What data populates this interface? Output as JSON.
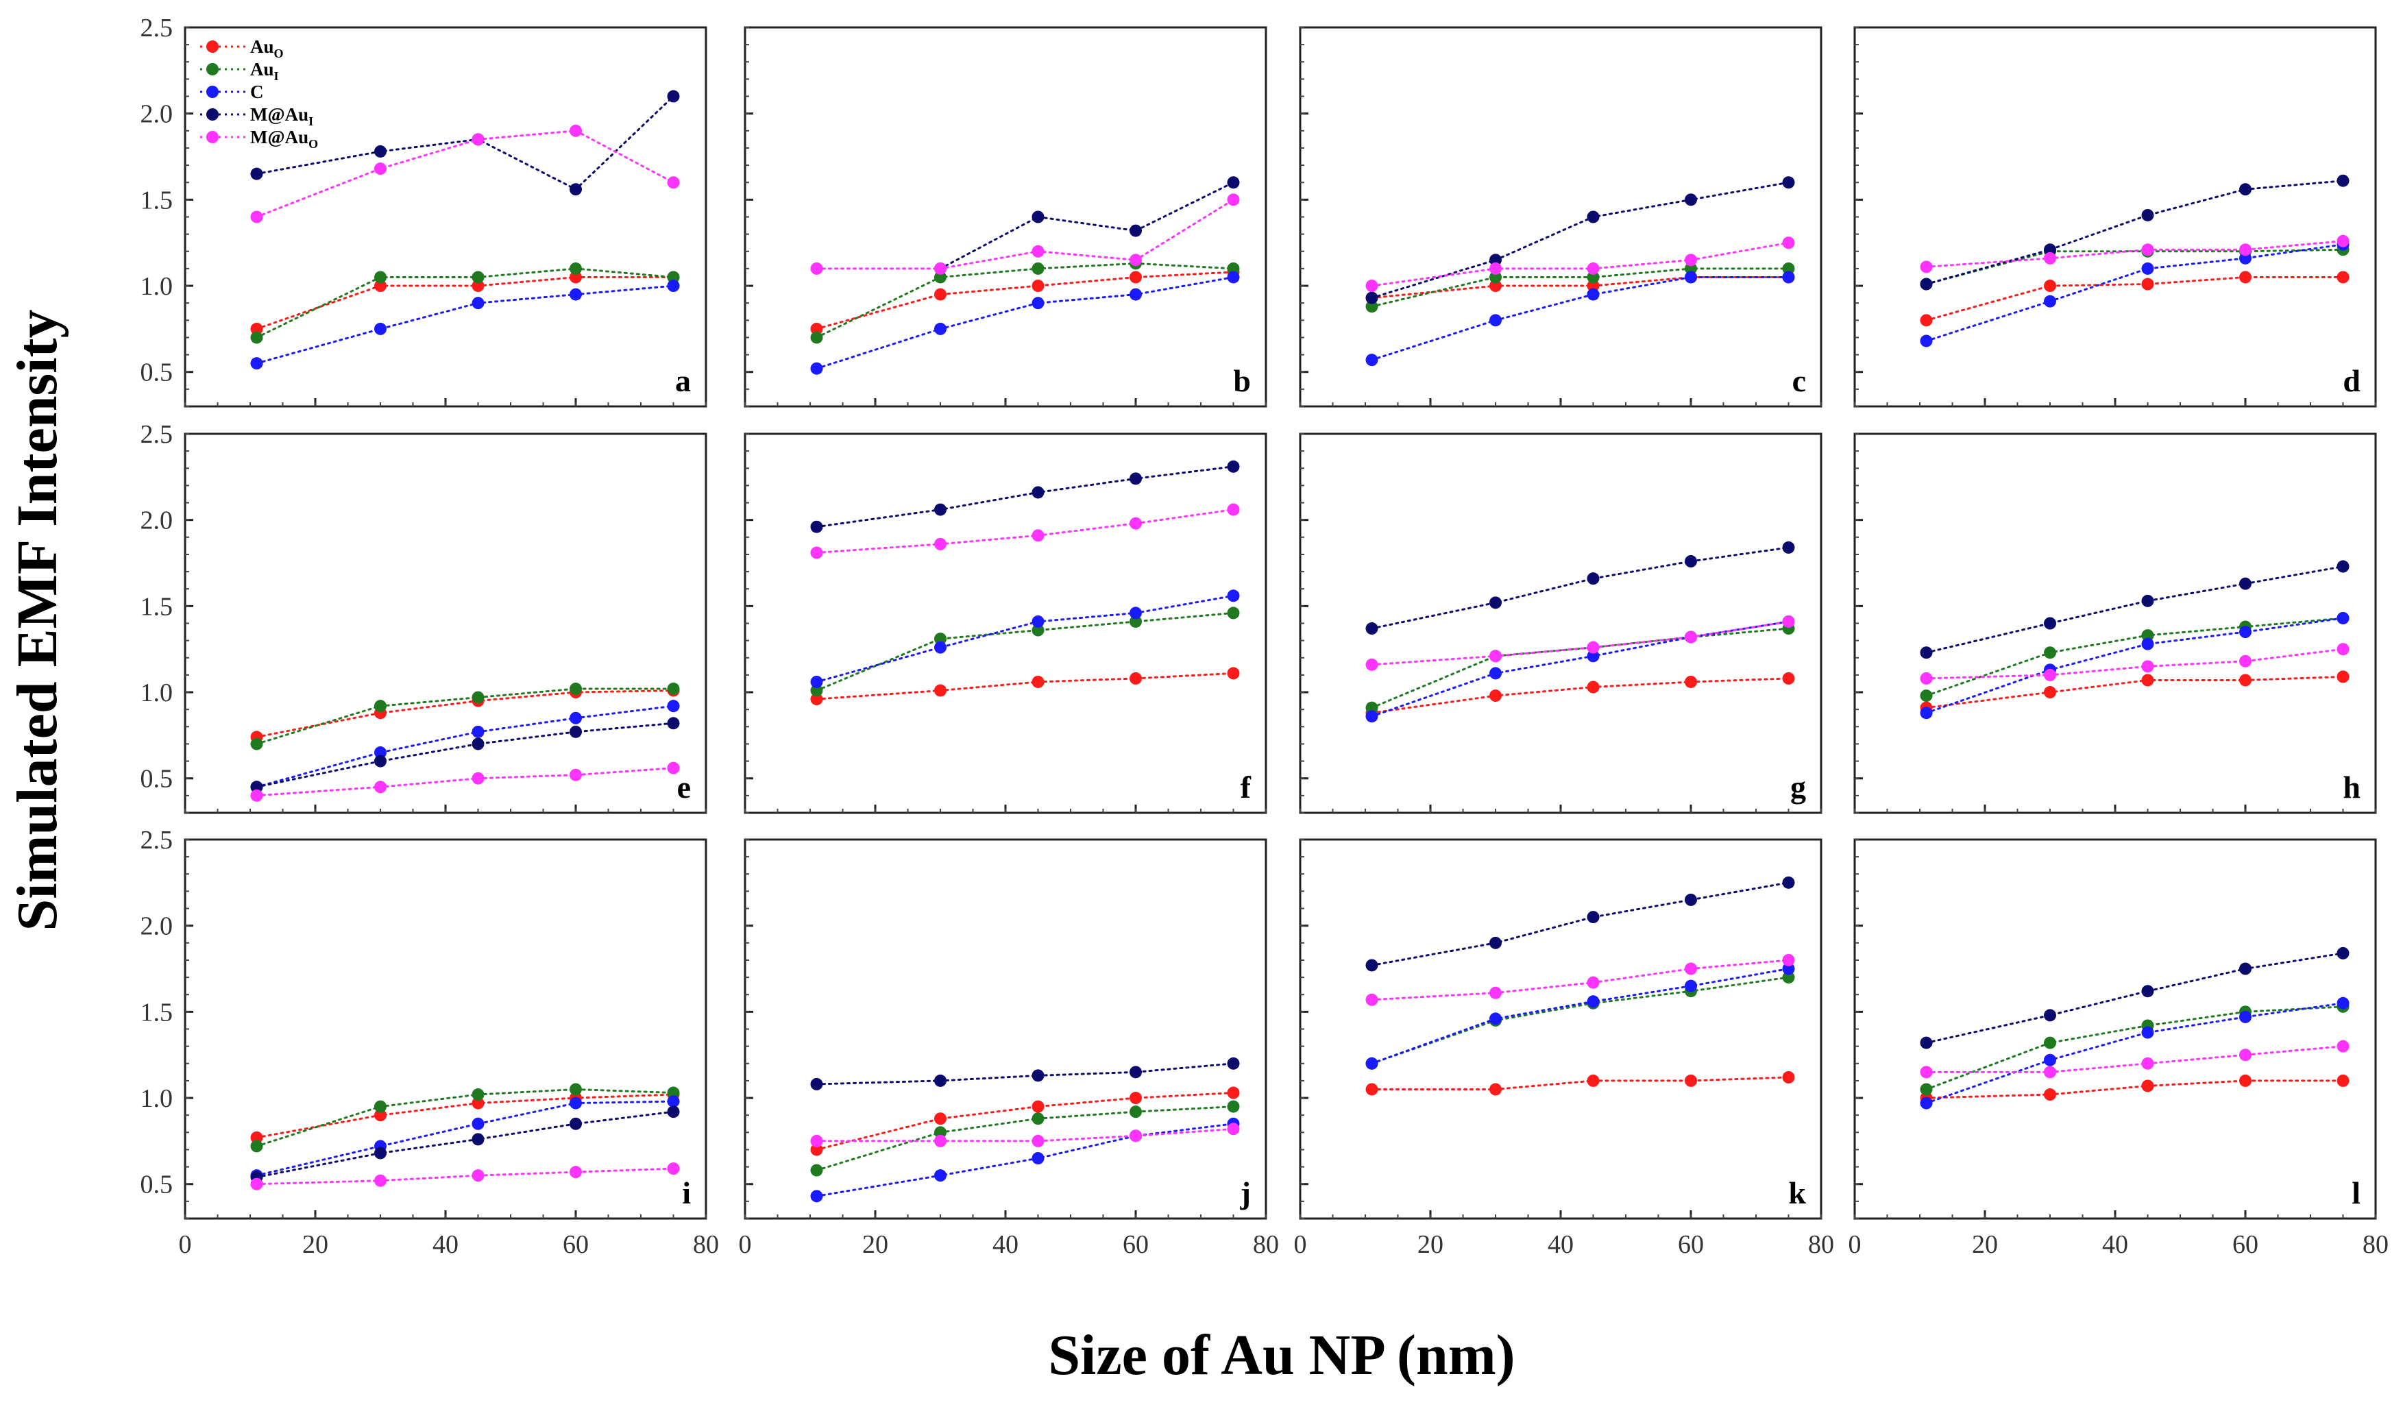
{
  "figure": {
    "ylabel": "Simulated EMF Intensity",
    "xlabel": "Size of Au NP (nm)"
  },
  "chart_data": {
    "type": "scatter",
    "grid": "3x4 panels",
    "x": [
      11,
      30,
      45,
      60,
      75
    ],
    "xlim": [
      0,
      80
    ],
    "ylim": [
      0.3,
      2.5
    ],
    "x_ticks": [
      0,
      20,
      40,
      60,
      80
    ],
    "y_ticks": [
      0.5,
      1.0,
      1.5,
      2.0,
      2.5
    ],
    "xlabel": "Size of Au NP (nm)",
    "ylabel": "Simulated EMF Intensity",
    "legend": {
      "placement": "top-left of panel a",
      "entries": [
        {
          "key": "AuO",
          "base": "Au",
          "sub": "O"
        },
        {
          "key": "AuI",
          "base": "Au",
          "sub": "I"
        },
        {
          "key": "C",
          "base": "C",
          "sub": ""
        },
        {
          "key": "MAuI",
          "base": "M@Au",
          "sub": "I"
        },
        {
          "key": "MAuO",
          "base": "M@Au",
          "sub": "O"
        }
      ]
    },
    "series_colors": {
      "AuO": "#ff1a1a",
      "AuI": "#1f7a1f",
      "C": "#1a1aff",
      "MAuI": "#0b0b6e",
      "MAuO": "#ff33ff"
    },
    "panels": [
      {
        "label": "a",
        "series": {
          "AuO": [
            0.75,
            1.0,
            1.0,
            1.05,
            1.05
          ],
          "AuI": [
            0.7,
            1.05,
            1.05,
            1.1,
            1.05
          ],
          "C": [
            0.55,
            0.75,
            0.9,
            0.95,
            1.0
          ],
          "MAuI": [
            1.65,
            1.78,
            1.85,
            1.56,
            2.1
          ],
          "MAuO": [
            1.4,
            1.68,
            1.85,
            1.9,
            1.6
          ]
        }
      },
      {
        "label": "b",
        "series": {
          "AuO": [
            0.75,
            0.95,
            1.0,
            1.05,
            1.08
          ],
          "AuI": [
            0.7,
            1.05,
            1.1,
            1.13,
            1.1
          ],
          "C": [
            0.52,
            0.75,
            0.9,
            0.95,
            1.05
          ],
          "MAuI": [
            null,
            1.1,
            1.4,
            1.32,
            1.6
          ],
          "MAuO": [
            1.1,
            1.1,
            1.2,
            1.15,
            1.5
          ]
        }
      },
      {
        "label": "c",
        "series": {
          "AuO": [
            0.93,
            1.0,
            1.0,
            1.05,
            1.05
          ],
          "AuI": [
            0.88,
            1.05,
            1.05,
            1.1,
            1.1
          ],
          "C": [
            0.57,
            0.8,
            0.95,
            1.05,
            1.05
          ],
          "MAuI": [
            0.93,
            1.15,
            1.4,
            1.5,
            1.6
          ],
          "MAuO": [
            1.0,
            1.1,
            1.1,
            1.15,
            1.25
          ]
        }
      },
      {
        "label": "d",
        "series": {
          "AuO": [
            0.8,
            1.0,
            1.01,
            1.05,
            1.05
          ],
          "AuI": [
            1.01,
            1.2,
            1.2,
            1.2,
            1.21
          ],
          "C": [
            0.68,
            0.91,
            1.1,
            1.16,
            1.24
          ],
          "MAuI": [
            1.01,
            1.21,
            1.41,
            1.56,
            1.61
          ],
          "MAuO": [
            1.11,
            1.16,
            1.21,
            1.21,
            1.26
          ]
        }
      },
      {
        "label": "e",
        "series": {
          "AuO": [
            0.74,
            0.88,
            0.95,
            1.0,
            1.01
          ],
          "AuI": [
            0.7,
            0.92,
            0.97,
            1.02,
            1.02
          ],
          "C": [
            0.45,
            0.65,
            0.77,
            0.85,
            0.92
          ],
          "MAuI": [
            0.45,
            0.6,
            0.7,
            0.77,
            0.82
          ],
          "MAuO": [
            0.4,
            0.45,
            0.5,
            0.52,
            0.56
          ]
        }
      },
      {
        "label": "f",
        "series": {
          "AuO": [
            0.96,
            1.01,
            1.06,
            1.08,
            1.11
          ],
          "AuI": [
            1.01,
            1.31,
            1.36,
            1.41,
            1.46
          ],
          "C": [
            1.06,
            1.26,
            1.41,
            1.46,
            1.56
          ],
          "MAuI": [
            1.96,
            2.06,
            2.16,
            2.24,
            2.31
          ],
          "MAuO": [
            1.81,
            1.86,
            1.91,
            1.98,
            2.06
          ]
        }
      },
      {
        "label": "g",
        "series": {
          "AuO": [
            0.88,
            0.98,
            1.03,
            1.06,
            1.08
          ],
          "AuI": [
            0.91,
            1.21,
            1.26,
            1.32,
            1.37
          ],
          "C": [
            0.86,
            1.11,
            1.21,
            1.32,
            1.41
          ],
          "MAuI": [
            1.37,
            1.52,
            1.66,
            1.76,
            1.84
          ],
          "MAuO": [
            1.16,
            1.21,
            1.26,
            1.32,
            1.41
          ]
        }
      },
      {
        "label": "h",
        "series": {
          "AuO": [
            0.91,
            1.0,
            1.07,
            1.07,
            1.09
          ],
          "AuI": [
            0.98,
            1.23,
            1.33,
            1.38,
            1.43
          ],
          "C": [
            0.88,
            1.13,
            1.28,
            1.35,
            1.43
          ],
          "MAuI": [
            1.23,
            1.4,
            1.53,
            1.63,
            1.73
          ],
          "MAuO": [
            1.08,
            1.1,
            1.15,
            1.18,
            1.25
          ]
        }
      },
      {
        "label": "i",
        "series": {
          "AuO": [
            0.77,
            0.9,
            0.97,
            1.0,
            1.02
          ],
          "AuI": [
            0.72,
            0.95,
            1.02,
            1.05,
            1.03
          ],
          "C": [
            0.55,
            0.72,
            0.85,
            0.97,
            0.98
          ],
          "MAuI": [
            0.54,
            0.68,
            0.76,
            0.85,
            0.92
          ],
          "MAuO": [
            0.5,
            0.52,
            0.55,
            0.57,
            0.59
          ]
        }
      },
      {
        "label": "j",
        "series": {
          "AuO": [
            0.7,
            0.88,
            0.95,
            1.0,
            1.03
          ],
          "AuI": [
            0.58,
            0.8,
            0.88,
            0.92,
            0.95
          ],
          "C": [
            0.43,
            0.55,
            0.65,
            0.78,
            0.85
          ],
          "MAuI": [
            1.08,
            1.1,
            1.13,
            1.15,
            1.2
          ],
          "MAuO": [
            0.75,
            0.75,
            0.75,
            0.78,
            0.82
          ]
        }
      },
      {
        "label": "k",
        "series": {
          "AuO": [
            1.05,
            1.05,
            1.1,
            1.1,
            1.12
          ],
          "AuI": [
            1.2,
            1.45,
            1.55,
            1.62,
            1.7
          ],
          "C": [
            1.2,
            1.46,
            1.56,
            1.65,
            1.75
          ],
          "MAuI": [
            1.77,
            1.9,
            2.05,
            2.15,
            2.25
          ],
          "MAuO": [
            1.57,
            1.61,
            1.67,
            1.75,
            1.8
          ]
        }
      },
      {
        "label": "l",
        "series": {
          "AuO": [
            1.0,
            1.02,
            1.07,
            1.1,
            1.1
          ],
          "AuI": [
            1.05,
            1.32,
            1.42,
            1.5,
            1.53
          ],
          "C": [
            0.97,
            1.22,
            1.38,
            1.47,
            1.55
          ],
          "MAuI": [
            1.32,
            1.48,
            1.62,
            1.75,
            1.84
          ],
          "MAuO": [
            1.15,
            1.15,
            1.2,
            1.25,
            1.3
          ]
        }
      }
    ]
  }
}
